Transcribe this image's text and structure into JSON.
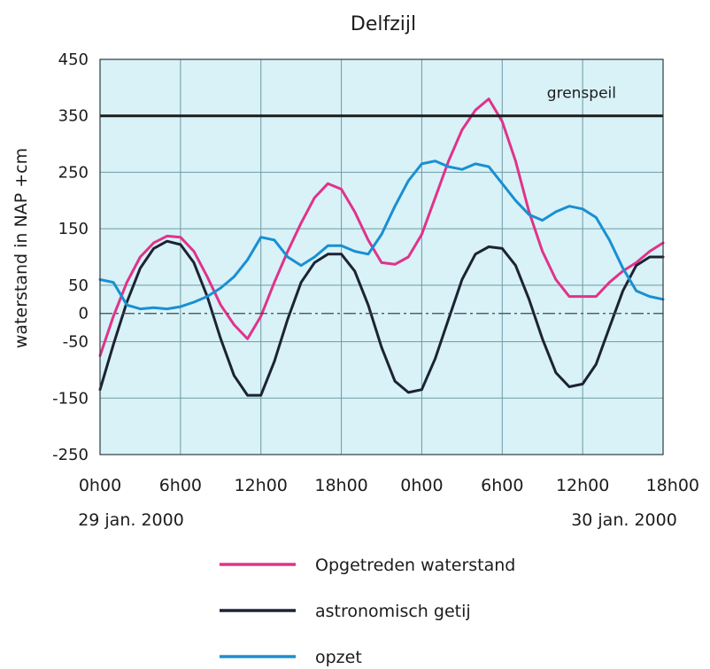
{
  "chart_data": {
    "type": "line",
    "title": "Delfzijl",
    "ylabel": "waterstand in NAP  +cm",
    "xlabel": "",
    "ylim": [
      -250,
      450
    ],
    "xlim": [
      0,
      42
    ],
    "y_ticks": [
      -250,
      -150,
      -50,
      0,
      50,
      150,
      250,
      350,
      450
    ],
    "x_ticks": [
      {
        "hour": 0,
        "label": "0h00"
      },
      {
        "hour": 6,
        "label": "6h00"
      },
      {
        "hour": 12,
        "label": "12h00"
      },
      {
        "hour": 18,
        "label": "18h00"
      },
      {
        "hour": 24,
        "label": "0h00"
      },
      {
        "hour": 30,
        "label": "6h00"
      },
      {
        "hour": 36,
        "label": "12h00"
      },
      {
        "hour": 42,
        "label": "18h00"
      }
    ],
    "date_labels": {
      "left": "29 jan. 2000",
      "right": "30 jan. 2000"
    },
    "grid": true,
    "background": "#d8f2f7",
    "reference_line": {
      "value": 350,
      "label": "grenspeil",
      "color": "#1c1c1c"
    },
    "zero_line": {
      "value": 0,
      "style": "dash-dot"
    },
    "legend_position": "bottom",
    "series": [
      {
        "name": "Opgetreden waterstand",
        "color": "#e0338a",
        "x": [
          0,
          1,
          2,
          3,
          4,
          5,
          6,
          7,
          8,
          9,
          10,
          11,
          12,
          13,
          14,
          15,
          16,
          17,
          18,
          19,
          20,
          21,
          22,
          23,
          24,
          25,
          26,
          27,
          28,
          29,
          30,
          31,
          32,
          33,
          34,
          35,
          36,
          37,
          38,
          39,
          40,
          41,
          42
        ],
        "values": [
          -75,
          -5,
          55,
          100,
          125,
          137,
          135,
          110,
          65,
          15,
          -20,
          -45,
          -5,
          55,
          110,
          160,
          205,
          230,
          220,
          180,
          130,
          90,
          87,
          100,
          140,
          205,
          270,
          325,
          360,
          380,
          340,
          270,
          180,
          110,
          60,
          30,
          30,
          30,
          55,
          75,
          90,
          110,
          125
        ]
      },
      {
        "name": "astronomisch getij",
        "color": "#1c2333",
        "x": [
          0,
          1,
          2,
          3,
          4,
          5,
          6,
          7,
          8,
          9,
          10,
          11,
          12,
          13,
          14,
          15,
          16,
          17,
          18,
          19,
          20,
          21,
          22,
          23,
          24,
          25,
          26,
          27,
          28,
          29,
          30,
          31,
          32,
          33,
          34,
          35,
          36,
          37,
          38,
          39,
          40,
          41,
          42
        ],
        "values": [
          -135,
          -55,
          20,
          80,
          115,
          128,
          122,
          90,
          30,
          -45,
          -110,
          -145,
          -145,
          -85,
          -10,
          55,
          90,
          105,
          105,
          75,
          15,
          -60,
          -120,
          -140,
          -135,
          -80,
          -10,
          60,
          105,
          118,
          115,
          85,
          25,
          -45,
          -105,
          -130,
          -125,
          -90,
          -25,
          40,
          85,
          100,
          100
        ]
      },
      {
        "name": "opzet",
        "color": "#1a8fd2",
        "x": [
          0,
          1,
          2,
          3,
          4,
          5,
          6,
          7,
          8,
          9,
          10,
          11,
          12,
          13,
          14,
          15,
          16,
          17,
          18,
          19,
          20,
          21,
          22,
          23,
          24,
          25,
          26,
          27,
          28,
          29,
          30,
          31,
          32,
          33,
          34,
          35,
          36,
          37,
          38,
          39,
          40,
          41,
          42
        ],
        "values": [
          60,
          55,
          15,
          8,
          10,
          8,
          12,
          20,
          30,
          45,
          65,
          95,
          135,
          130,
          100,
          85,
          100,
          120,
          120,
          110,
          105,
          140,
          190,
          235,
          265,
          270,
          260,
          255,
          265,
          260,
          230,
          200,
          175,
          165,
          180,
          190,
          185,
          170,
          130,
          80,
          40,
          30,
          25
        ]
      }
    ]
  }
}
